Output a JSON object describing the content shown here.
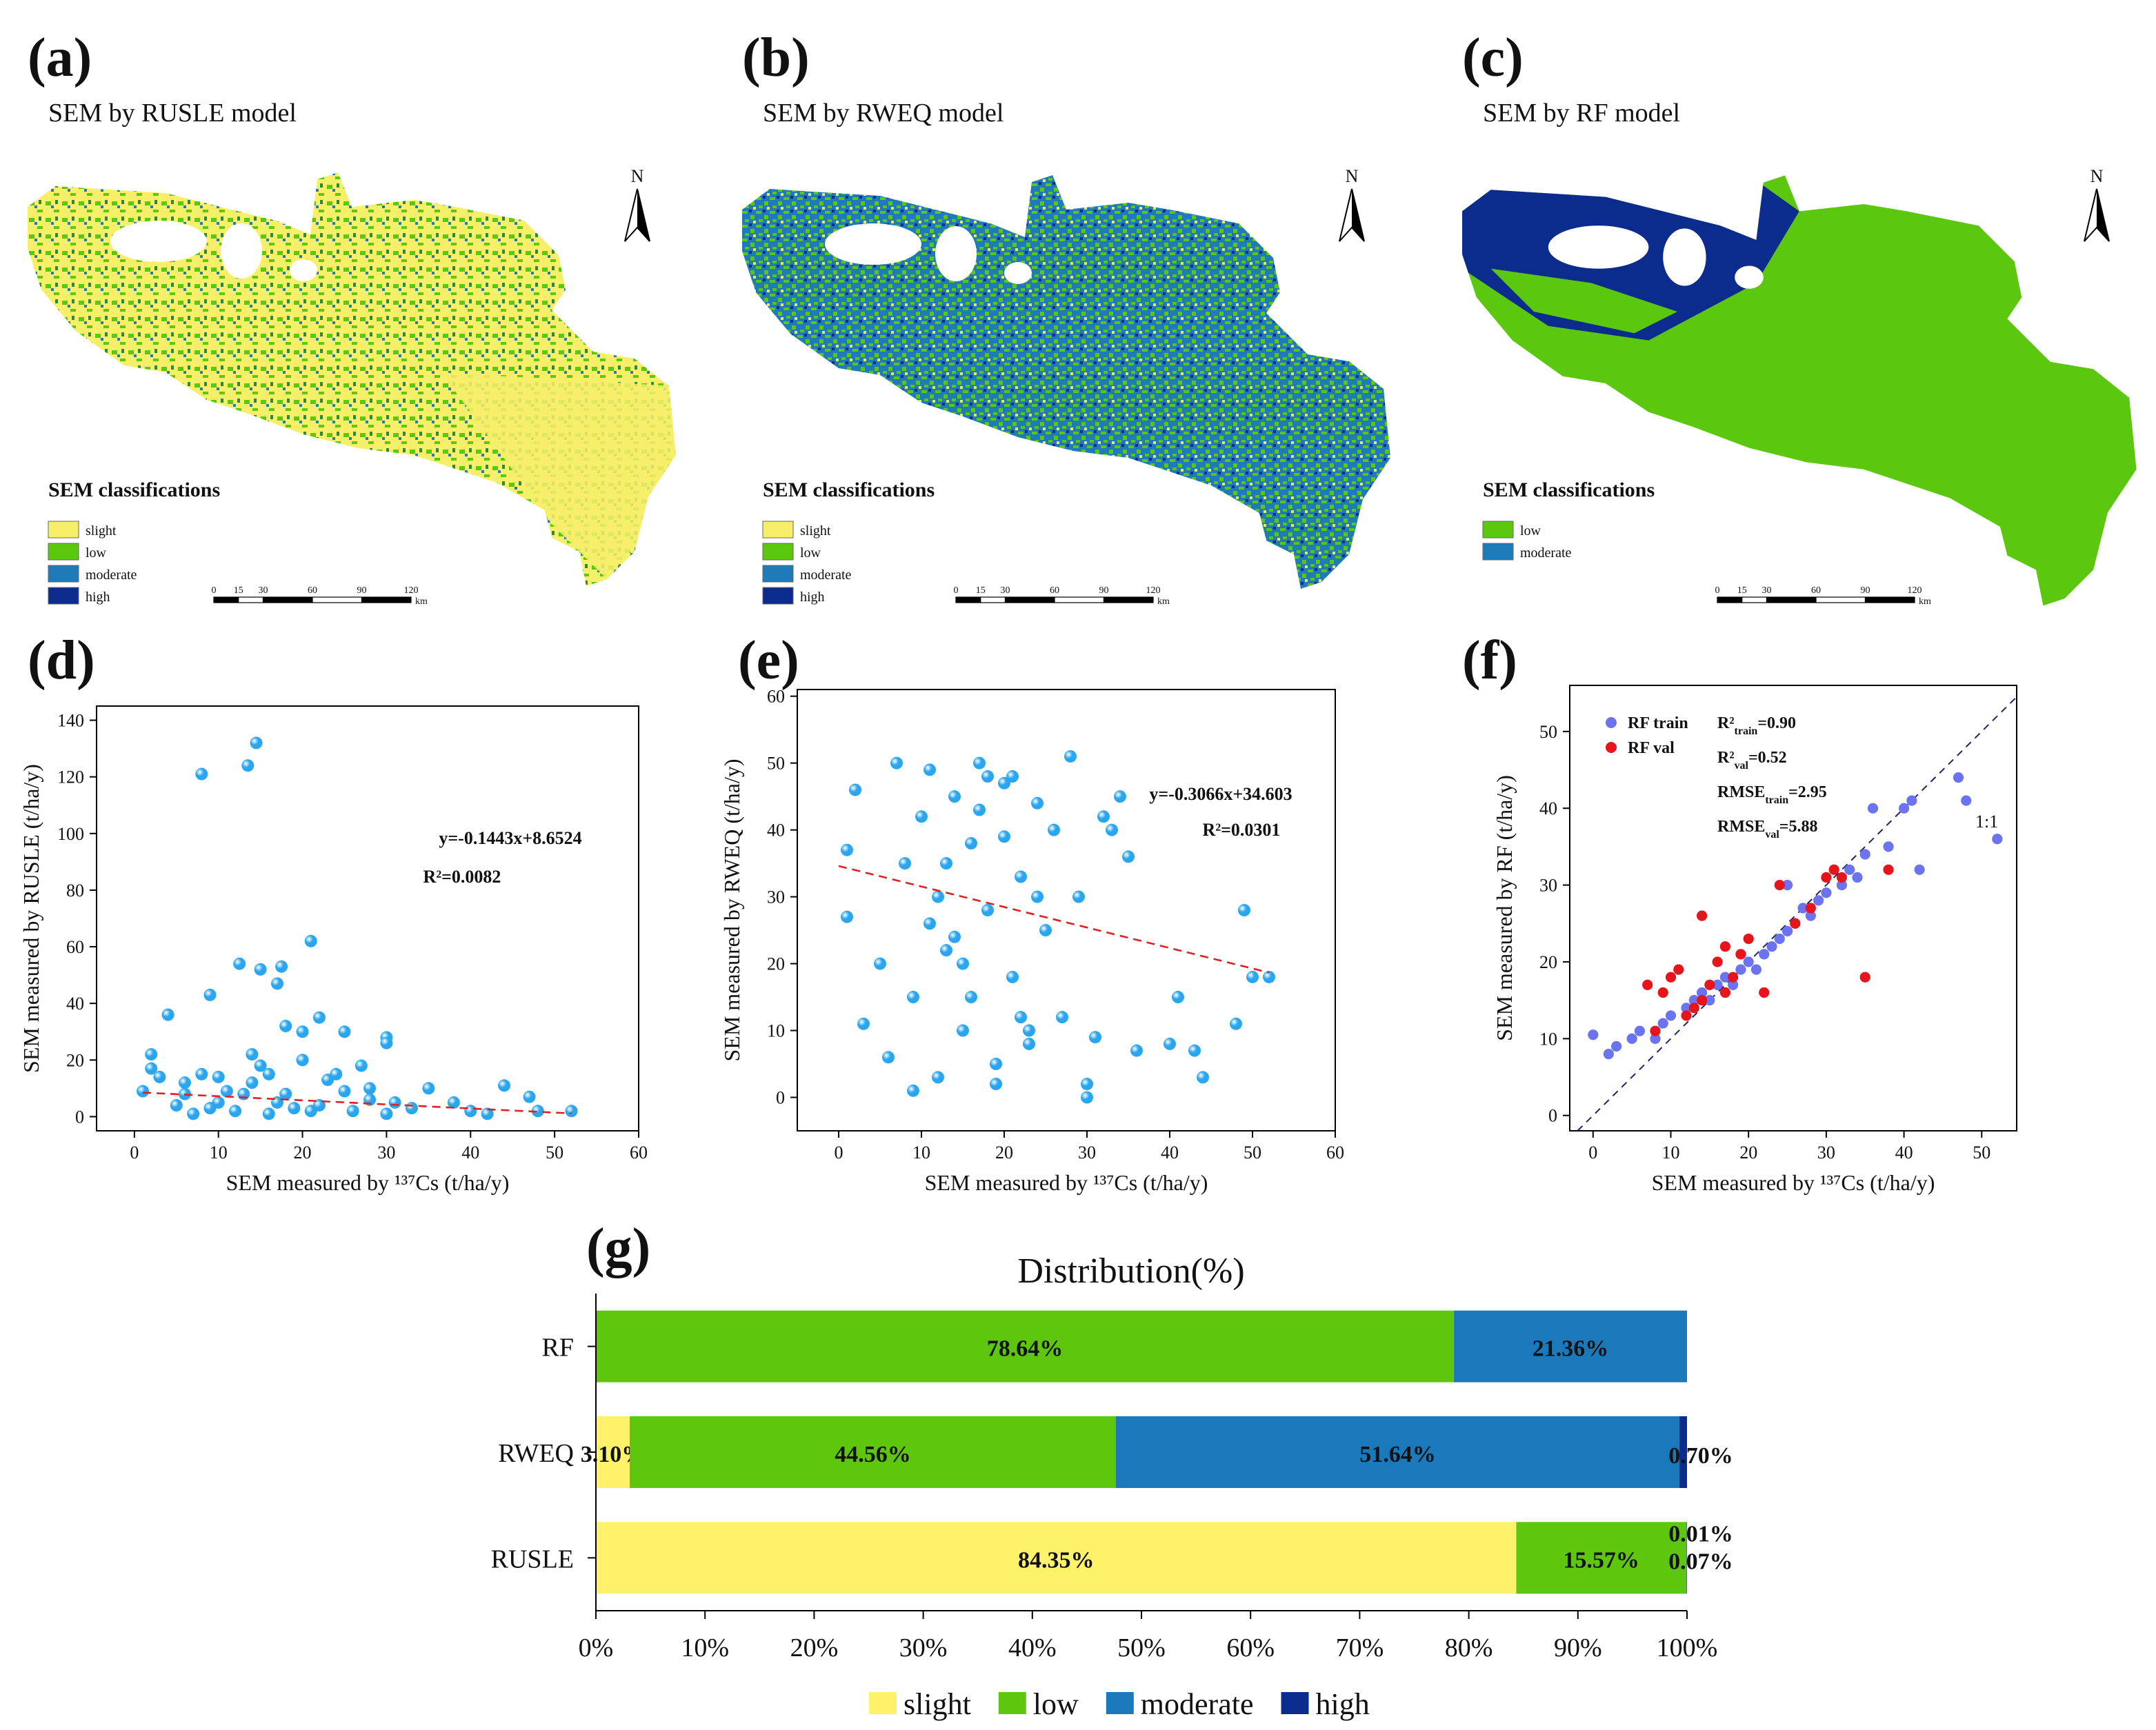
{
  "maps": [
    {
      "panel": "(a)",
      "title": "SEM by RUSLE model",
      "legend_title": "SEM classifications",
      "classes": [
        "slight",
        "low",
        "moderate",
        "high"
      ],
      "class_colors": [
        "#f7ef6a",
        "#5cc70f",
        "#1f7ab8",
        "#0b2c8c"
      ],
      "north": "N",
      "scale_labels": [
        0,
        15,
        30,
        60,
        90,
        120
      ],
      "scale_unit": "km"
    },
    {
      "panel": "(b)",
      "title": "SEM by RWEQ model",
      "legend_title": "SEM classifications",
      "classes": [
        "slight",
        "low",
        "moderate",
        "high"
      ],
      "class_colors": [
        "#f7ef6a",
        "#5cc70f",
        "#1f7ab8",
        "#0b2c8c"
      ],
      "north": "N",
      "scale_labels": [
        0,
        15,
        30,
        60,
        90,
        120
      ],
      "scale_unit": "km"
    },
    {
      "panel": "(c)",
      "title": "SEM by RF model",
      "legend_title": "SEM classifications",
      "classes": [
        "low",
        "moderate"
      ],
      "class_colors": [
        "#5cc70f",
        "#1f7ab8"
      ],
      "north": "N",
      "scale_labels": [
        0,
        15,
        30,
        60,
        90,
        120
      ],
      "scale_unit": "km"
    }
  ],
  "chart_data": [
    {
      "type": "scatter",
      "panel": "(d)",
      "xlabel": "SEM measured by ¹³⁷Cs (t/ha/y)",
      "ylabel": "SEM measured by RUSLE (t/ha/y)",
      "xlim": [
        -4.5,
        60
      ],
      "ylim": [
        -5,
        145
      ],
      "xticks": [
        0,
        10,
        20,
        30,
        40,
        50,
        60
      ],
      "yticks": [
        0,
        20,
        40,
        60,
        80,
        100,
        120,
        140
      ],
      "color": "#2ba6ee",
      "x": [
        8,
        13.5,
        14.5,
        21,
        12.5,
        15,
        17,
        17.5,
        9,
        4,
        18,
        20,
        22,
        25,
        30,
        30,
        2,
        2,
        8,
        10,
        14,
        15,
        20,
        24,
        28,
        35,
        38,
        44,
        47,
        48,
        52,
        1,
        3,
        5,
        6,
        10,
        12,
        16,
        18,
        22,
        26,
        28,
        30,
        33,
        40,
        42,
        7,
        11,
        14,
        19,
        23,
        27,
        31,
        25,
        17,
        13,
        9,
        21,
        6,
        16
      ],
      "values": [
        121,
        124,
        132,
        62,
        54,
        52,
        47,
        53,
        43,
        36,
        32,
        30,
        35,
        30,
        28,
        26,
        22,
        17,
        15,
        14,
        22,
        18,
        20,
        15,
        10,
        10,
        5,
        11,
        7,
        2,
        2,
        9,
        14,
        4,
        8,
        5,
        2,
        1,
        8,
        4,
        2,
        6,
        1,
        3,
        2,
        1,
        1,
        9,
        12,
        3,
        13,
        18,
        5,
        9,
        5,
        8,
        3,
        2,
        12,
        15
      ],
      "trend": {
        "slope": -0.1443,
        "intercept": 8.6524,
        "x": [
          1,
          52
        ],
        "color": "#e02020"
      },
      "equation": "y=-0.1443x+8.6524",
      "r2": "R²=0.0082"
    },
    {
      "type": "scatter",
      "panel": "(e)",
      "xlabel": "SEM measured by ¹³⁷Cs (t/ha/y)",
      "ylabel": "SEM measured by RWEQ (t/ha/y)",
      "xlim": [
        -5,
        60
      ],
      "ylim": [
        -5,
        61
      ],
      "xticks": [
        0,
        10,
        20,
        30,
        40,
        50,
        60
      ],
      "yticks": [
        0,
        10,
        20,
        30,
        40,
        50,
        60
      ],
      "color": "#2ba6ee",
      "x": [
        2,
        1,
        3,
        1,
        5,
        6,
        7,
        8,
        9,
        10,
        11,
        12,
        13,
        14,
        15,
        16,
        17,
        18,
        19,
        20,
        21,
        22,
        23,
        24,
        25,
        26,
        27,
        28,
        29,
        30,
        31,
        32,
        33,
        34,
        35,
        9,
        12,
        14,
        16,
        18,
        20,
        22,
        24,
        11,
        13,
        15,
        17,
        19,
        21,
        23,
        49,
        48,
        50,
        52,
        44,
        43,
        40,
        41,
        36,
        30
      ],
      "values": [
        46,
        37,
        11,
        27,
        20,
        6,
        50,
        35,
        15,
        42,
        49,
        30,
        22,
        45,
        10,
        38,
        50,
        28,
        5,
        47,
        18,
        33,
        8,
        44,
        25,
        40,
        12,
        51,
        30,
        2,
        9,
        42,
        40,
        45,
        36,
        1,
        3,
        24,
        15,
        48,
        39,
        12,
        30,
        26,
        35,
        20,
        43,
        2,
        48,
        10,
        28,
        11,
        18,
        18,
        3,
        7,
        8,
        15,
        7,
        0
      ],
      "trend": {
        "slope": -0.3066,
        "intercept": 34.603,
        "x": [
          0,
          52
        ],
        "color": "#e02020"
      },
      "equation": "y=-0.3066x+34.603",
      "r2": "R²=0.0301"
    },
    {
      "type": "scatter",
      "panel": "(f)",
      "xlabel": "SEM measured by ¹³⁷Cs (t/ha/y)",
      "ylabel": "SEM measured by RF (t/ha/y)",
      "xlim": [
        -3,
        54.5
      ],
      "ylim": [
        -2,
        56
      ],
      "xticks": [
        0,
        10,
        20,
        30,
        40,
        50
      ],
      "yticks": [
        0,
        10,
        20,
        30,
        40,
        50
      ],
      "series": [
        {
          "name": "RF train",
          "color": "#6b73f0",
          "x": [
            0,
            2,
            3,
            5,
            6,
            8,
            9,
            10,
            12,
            13,
            14,
            15,
            16,
            17,
            18,
            19,
            20,
            21,
            22,
            23,
            24,
            25,
            26,
            27,
            28,
            29,
            30,
            32,
            33,
            34,
            35,
            36,
            38,
            40,
            41,
            42,
            47,
            48,
            52,
            25
          ],
          "values": [
            10.5,
            8,
            9,
            10,
            11,
            10,
            12,
            13,
            14,
            15,
            16,
            15,
            17,
            18,
            17,
            19,
            20,
            19,
            21,
            22,
            23,
            24,
            25,
            27,
            26,
            28,
            29,
            30,
            32,
            31,
            34,
            40,
            35,
            40,
            41,
            32,
            44,
            41,
            36,
            30
          ]
        },
        {
          "name": "RF val",
          "color": "#e8141c",
          "x": [
            7,
            8,
            9,
            10,
            11,
            12,
            13,
            14,
            14,
            15,
            16,
            17,
            18,
            19,
            20,
            22,
            24,
            26,
            28,
            30,
            31,
            32,
            35,
            38,
            17
          ],
          "values": [
            17,
            11,
            16,
            18,
            19,
            13,
            14,
            26,
            15,
            17,
            20,
            16,
            18,
            21,
            23,
            16,
            30,
            25,
            27,
            31,
            32,
            31,
            18,
            32,
            22
          ]
        }
      ],
      "identity_label": "1:1",
      "annotations": [
        {
          "base": "R²",
          "sub": "train",
          "text": "=0.90"
        },
        {
          "base": "R²",
          "sub": "val",
          "text": "=0.52"
        },
        {
          "base": "RMSE",
          "sub": "train",
          "text": "=2.95"
        },
        {
          "base": "RMSE",
          "sub": "val",
          "text": "=5.88"
        }
      ]
    },
    {
      "type": "bar",
      "orientation": "horizontal",
      "stacked": true,
      "panel": "(g)",
      "title": "Distribution(%)",
      "categories": [
        "RF",
        "RWEQ",
        "RUSLE"
      ],
      "xlim": [
        0,
        100
      ],
      "xticks": [
        {
          "value": 0,
          "label": "0%"
        },
        {
          "value": 10,
          "label": "10%"
        },
        {
          "value": 20,
          "label": "20%"
        },
        {
          "value": 30,
          "label": "30%"
        },
        {
          "value": 40,
          "label": "40%"
        },
        {
          "value": 50,
          "label": "50%"
        },
        {
          "value": 60,
          "label": "60%"
        },
        {
          "value": 70,
          "label": "70%"
        },
        {
          "value": 80,
          "label": "80%"
        },
        {
          "value": 90,
          "label": "90%"
        },
        {
          "value": 100,
          "label": "100%"
        }
      ],
      "series": [
        {
          "name": "slight",
          "color": "#fdf26a",
          "values": [
            0,
            3.1,
            84.35
          ],
          "value_labels": [
            null,
            "3.10%",
            "84.35%"
          ]
        },
        {
          "name": "low",
          "color": "#5dc60d",
          "values": [
            78.64,
            44.56,
            15.57
          ],
          "value_labels": [
            "78.64%",
            "44.56%",
            "15.57%"
          ]
        },
        {
          "name": "moderate",
          "color": "#1a79bb",
          "values": [
            21.36,
            51.64,
            0.07
          ],
          "value_labels": [
            "21.36%",
            "51.64%",
            "0.07%"
          ]
        },
        {
          "name": "high",
          "color": "#0a2c8c",
          "values": [
            0,
            0.7,
            0.01
          ],
          "value_labels": [
            null,
            "0.70%",
            "0.01%"
          ]
        }
      ]
    }
  ]
}
